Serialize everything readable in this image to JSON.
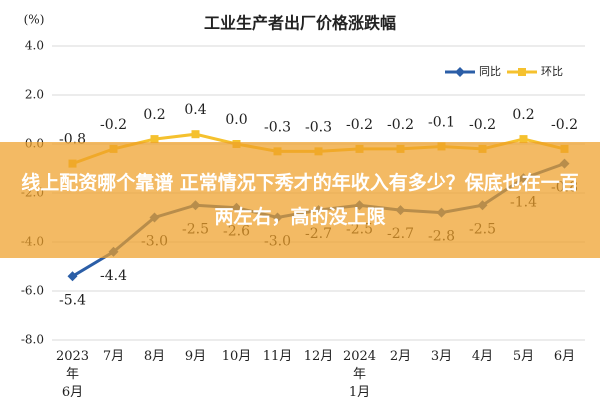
{
  "chart_data": {
    "type": "line",
    "title": "工业生产者出厂价格涨跌幅",
    "y_label": "(%)",
    "categories": [
      "2023年\n6月",
      "7月",
      "8月",
      "9月",
      "10月",
      "11月",
      "12月",
      "2024年\n1月",
      "2月",
      "3月",
      "4月",
      "5月",
      "6月"
    ],
    "series": [
      {
        "name": "同比",
        "color": "#2b5ea7",
        "marker": "diamond",
        "values": [
          -5.4,
          -4.4,
          -3.0,
          -2.5,
          -2.6,
          -3.0,
          -2.7,
          -2.5,
          -2.7,
          -2.8,
          -2.5,
          -1.4,
          -0.8
        ],
        "value_labels": [
          "-5.4",
          "-4.4",
          "-3.0",
          "-2.5",
          "-2.6",
          "-3.0",
          "-2.7",
          "-2.5",
          "-2.7",
          "-2.8",
          "-2.5",
          "-1.4",
          "-0.8"
        ]
      },
      {
        "name": "环比",
        "color": "#f5c12e",
        "marker": "square",
        "values": [
          -0.8,
          -0.2,
          0.2,
          0.4,
          0.0,
          -0.3,
          -0.3,
          -0.2,
          -0.2,
          -0.1,
          -0.2,
          0.2,
          -0.2
        ],
        "value_labels": [
          "-0.8",
          "-0.2",
          "0.2",
          "0.4",
          "0.0",
          "-0.3",
          "-0.3",
          "-0.2",
          "-0.2",
          "-0.1",
          "-0.2",
          "0.2",
          "-0.2"
        ]
      }
    ],
    "ylim": [
      -8,
      4
    ],
    "yticks": [
      {
        "value": -8,
        "label": "-8.0"
      },
      {
        "value": -6,
        "label": "-6.0"
      },
      {
        "value": -4,
        "label": "-4.0"
      },
      {
        "value": -2,
        "label": "-2.0"
      },
      {
        "value": 0,
        "label": "0.0"
      },
      {
        "value": 2,
        "label": "2.0"
      },
      {
        "value": 4,
        "label": "4.0"
      }
    ],
    "grid": true,
    "legend": "top-right"
  },
  "banner": {
    "text": "线上配资哪个靠谱 正常情况下秀才的年收入有多少？保底也在一百两左右，高的没上限"
  }
}
